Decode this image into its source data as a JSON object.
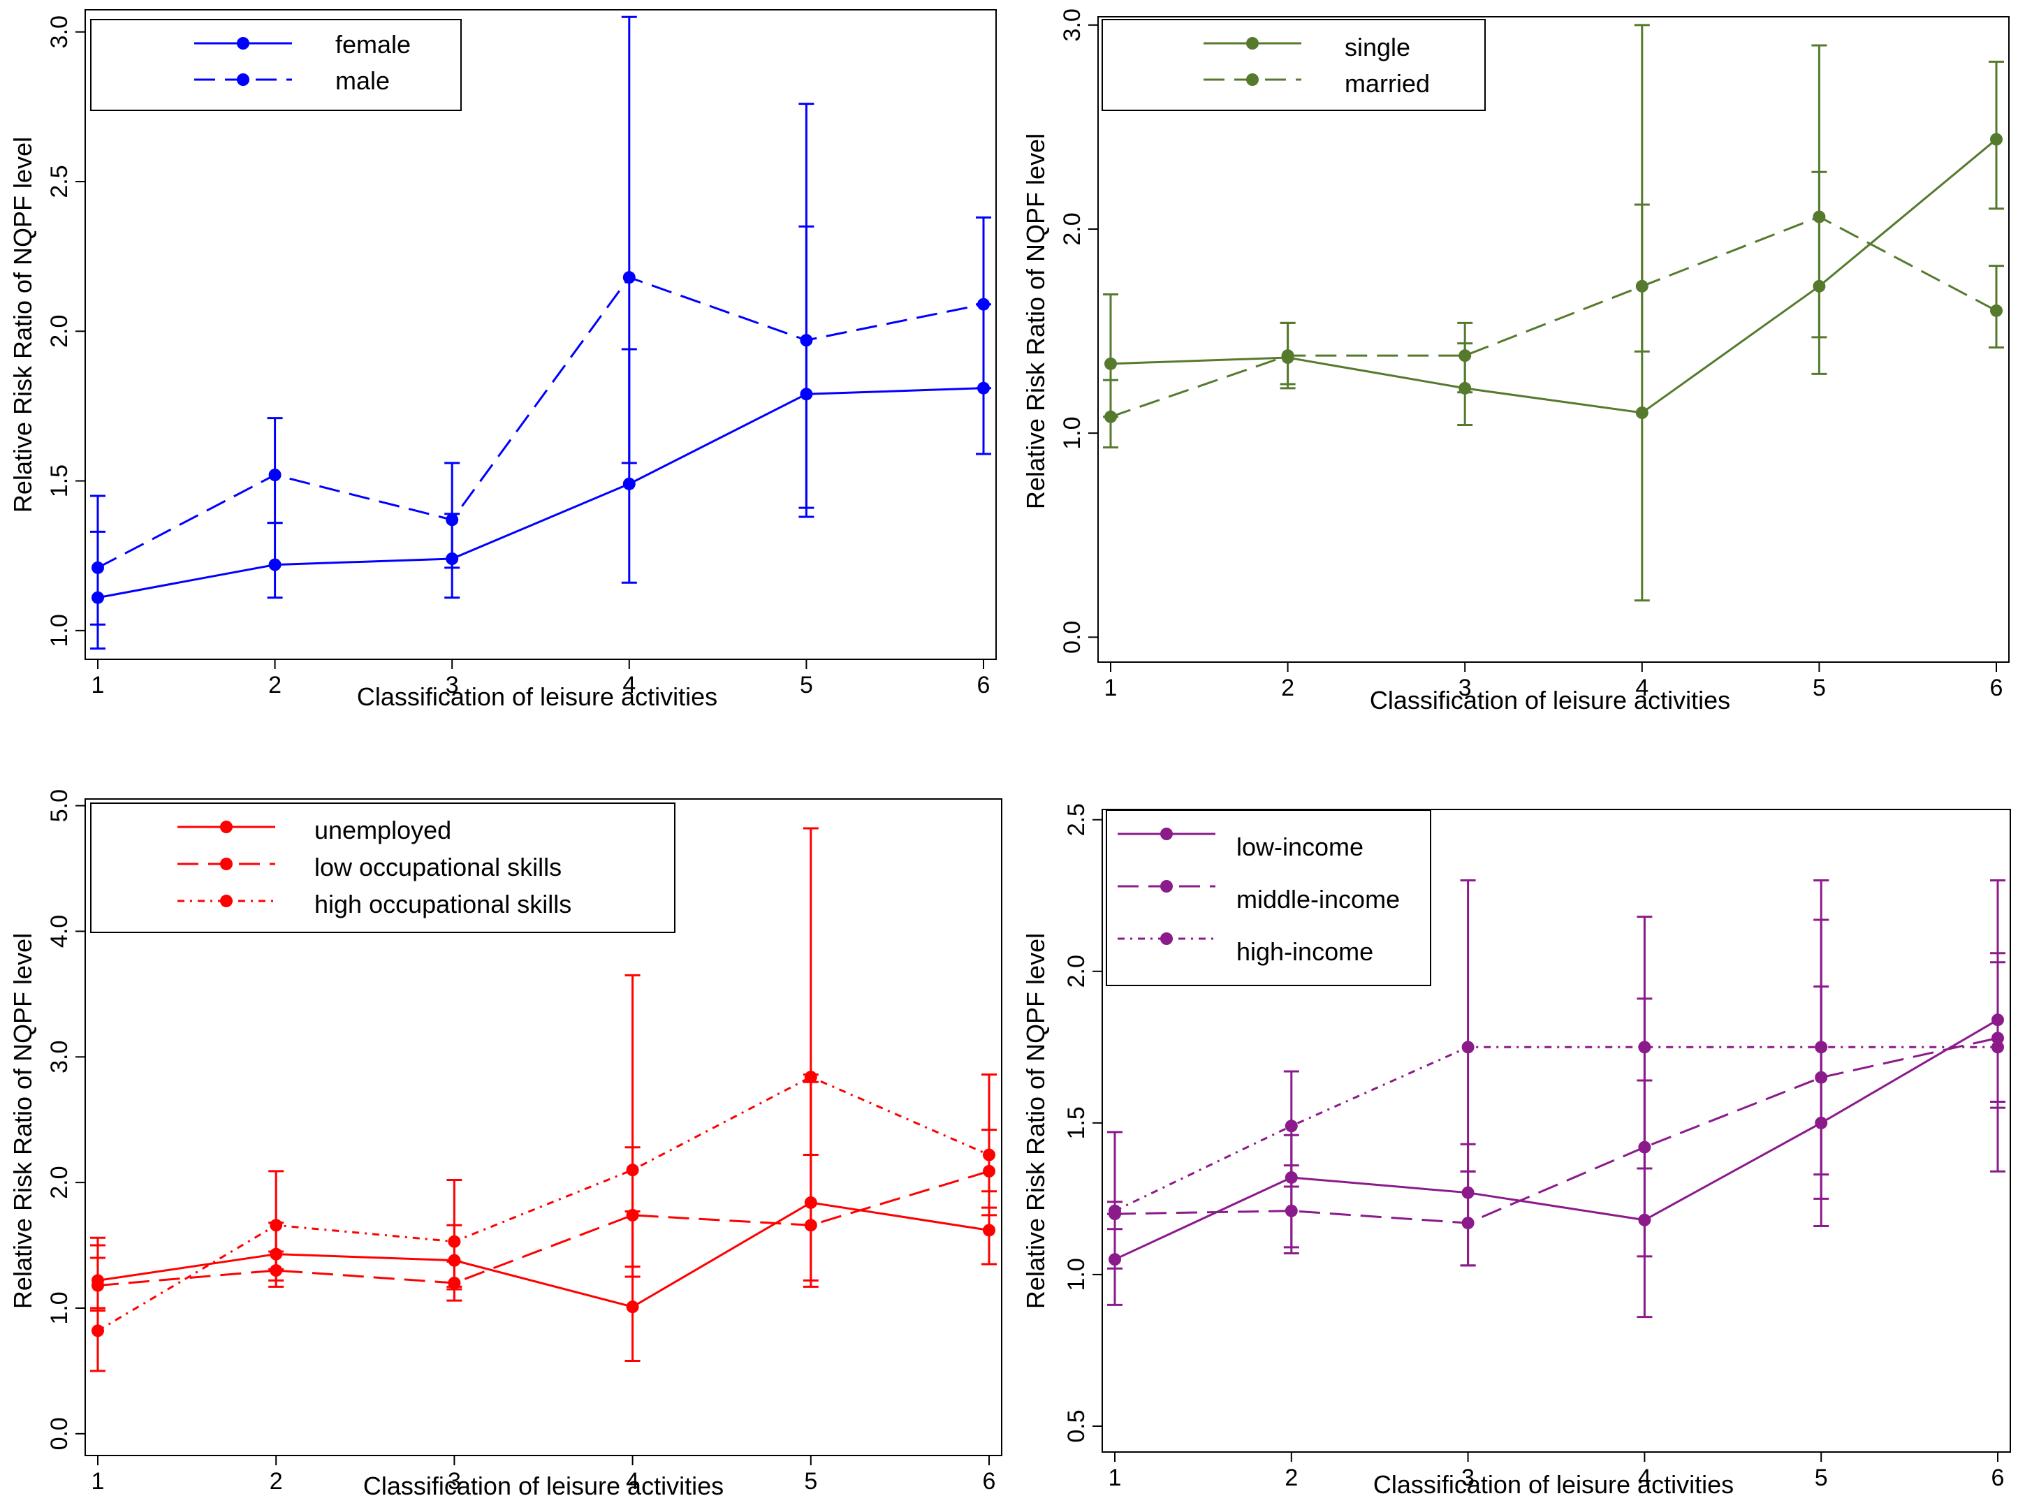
{
  "chart_data": [
    {
      "type": "line",
      "id": "gender",
      "xlabel": "Classification of leisure activities",
      "ylabel": "Relative Risk Ratio of NQPF level",
      "x": [
        1,
        2,
        3,
        4,
        5,
        6
      ],
      "xticks": [
        "1",
        "2",
        "3",
        "4",
        "5",
        "6"
      ],
      "ylim": [
        0.96,
        3.06
      ],
      "yticks": [
        1.0,
        1.5,
        2.0,
        2.5,
        3.0
      ],
      "ytick_labels": [
        "1.0",
        "1.5",
        "2.0",
        "2.5",
        "3.0"
      ],
      "color": "#0000ff",
      "series": [
        {
          "name": "female",
          "dash": "solid",
          "values": [
            1.11,
            1.22,
            1.24,
            1.49,
            1.79,
            1.81
          ],
          "ci_low": [
            0.94,
            1.11,
            1.11,
            1.16,
            1.38,
            1.59
          ],
          "ci_high": [
            1.33,
            1.36,
            1.39,
            1.94,
            2.35,
            2.09
          ]
        },
        {
          "name": "male",
          "dash": "dashed",
          "values": [
            1.21,
            1.52,
            1.37,
            2.18,
            1.97,
            2.09
          ],
          "ci_low": [
            1.02,
            1.36,
            1.21,
            1.56,
            1.41,
            1.81
          ],
          "ci_high": [
            1.45,
            1.71,
            1.56,
            3.05,
            2.76,
            2.38
          ]
        }
      ]
    },
    {
      "type": "line",
      "id": "marital",
      "xlabel": "Classification of leisure activities",
      "ylabel": "Relative Risk Ratio of NQPF level",
      "x": [
        1,
        2,
        3,
        4,
        5,
        6
      ],
      "xticks": [
        "1",
        "2",
        "3",
        "4",
        "5",
        "6"
      ],
      "ylim": [
        -0.04,
        3.02
      ],
      "yticks": [
        0.0,
        1.0,
        2.0,
        3.0
      ],
      "ytick_labels": [
        "0.0",
        "1.0",
        "2.0",
        "3.0"
      ],
      "color": "#557a2e",
      "series": [
        {
          "name": "single",
          "dash": "solid",
          "values": [
            1.34,
            1.37,
            1.22,
            1.1,
            1.72,
            2.44
          ],
          "ci_low": [
            1.08,
            1.22,
            1.04,
            0.18,
            1.29,
            2.1
          ],
          "ci_high": [
            1.68,
            1.54,
            1.44,
            3.0,
            2.28,
            2.82
          ]
        },
        {
          "name": "married",
          "dash": "dashed",
          "values": [
            1.08,
            1.38,
            1.38,
            1.72,
            2.06,
            1.6
          ],
          "ci_low": [
            0.93,
            1.24,
            1.2,
            1.4,
            1.47,
            1.42
          ],
          "ci_high": [
            1.26,
            1.54,
            1.54,
            2.12,
            2.9,
            1.82
          ]
        }
      ]
    },
    {
      "type": "line",
      "id": "occupation",
      "xlabel": "Classification of leisure activities",
      "ylabel": "Relative Risk Ratio of NQPF level",
      "x": [
        1,
        2,
        3,
        4,
        5,
        6
      ],
      "xticks": [
        "1",
        "2",
        "3",
        "4",
        "5",
        "6"
      ],
      "ylim": [
        -0.04,
        5.02
      ],
      "yticks": [
        0.0,
        1.0,
        2.0,
        3.0,
        4.0,
        5.0
      ],
      "ytick_labels": [
        "0.0",
        "1.0",
        "2.0",
        "3.0",
        "4.0",
        "5.0"
      ],
      "color": "#ff0000",
      "series": [
        {
          "name": "unemployed",
          "dash": "solid",
          "values": [
            1.22,
            1.43,
            1.38,
            1.01,
            1.84,
            1.62
          ],
          "ci_low": [
            0.98,
            1.22,
            1.15,
            0.58,
            1.22,
            1.35
          ],
          "ci_high": [
            1.5,
            1.68,
            1.66,
            1.77,
            2.8,
            1.93
          ]
        },
        {
          "name": "low occupational skills",
          "dash": "dashed",
          "values": [
            1.18,
            1.3,
            1.2,
            1.74,
            1.66,
            2.09
          ],
          "ci_low": [
            1.0,
            1.17,
            1.06,
            1.33,
            1.17,
            1.8
          ],
          "ci_high": [
            1.4,
            1.45,
            1.37,
            2.28,
            2.86,
            2.42
          ]
        },
        {
          "name": "high occupational skills",
          "dash": "dotted",
          "values": [
            0.82,
            1.66,
            1.53,
            2.1,
            2.84,
            2.22
          ],
          "ci_low": [
            0.5,
            1.31,
            1.17,
            1.25,
            2.22,
            1.74
          ],
          "ci_high": [
            1.56,
            2.09,
            2.02,
            3.65,
            4.82,
            2.86
          ]
        }
      ]
    },
    {
      "type": "line",
      "id": "income",
      "xlabel": "Classification of leisure activities",
      "ylabel": "Relative Risk Ratio of NQPF level",
      "x": [
        1,
        2,
        3,
        4,
        5,
        6
      ],
      "xticks": [
        "1",
        "2",
        "3",
        "4",
        "5",
        "6"
      ],
      "ylim": [
        0.47,
        2.52
      ],
      "yticks": [
        0.5,
        1.0,
        1.5,
        2.0,
        2.5
      ],
      "ytick_labels": [
        "0.5",
        "1.0",
        "1.5",
        "2.0",
        "2.5"
      ],
      "color": "#8b1a8b",
      "series": [
        {
          "name": "low-income",
          "dash": "solid",
          "values": [
            1.05,
            1.32,
            1.27,
            1.18,
            1.5,
            1.84
          ],
          "ci_low": [
            0.9,
            1.07,
            1.03,
            0.86,
            1.16,
            1.34
          ],
          "ci_high": [
            1.2,
            1.46,
            1.43,
            1.64,
            1.95,
            2.3
          ]
        },
        {
          "name": "middle-income",
          "dash": "dashed",
          "values": [
            1.2,
            1.21,
            1.17,
            1.42,
            1.65,
            1.78
          ],
          "ci_low": [
            1.02,
            1.09,
            1.03,
            1.06,
            1.25,
            1.57
          ],
          "ci_high": [
            1.24,
            1.36,
            1.34,
            1.91,
            2.17,
            2.03
          ]
        },
        {
          "name": "high-income",
          "dash": "dotted",
          "values": [
            1.21,
            1.49,
            1.75,
            1.75,
            1.75,
            1.75
          ],
          "ci_low": [
            1.15,
            1.29,
            1.34,
            1.35,
            1.33,
            1.55
          ],
          "ci_high": [
            1.47,
            1.67,
            2.3,
            2.18,
            2.3,
            2.06
          ]
        }
      ]
    }
  ]
}
